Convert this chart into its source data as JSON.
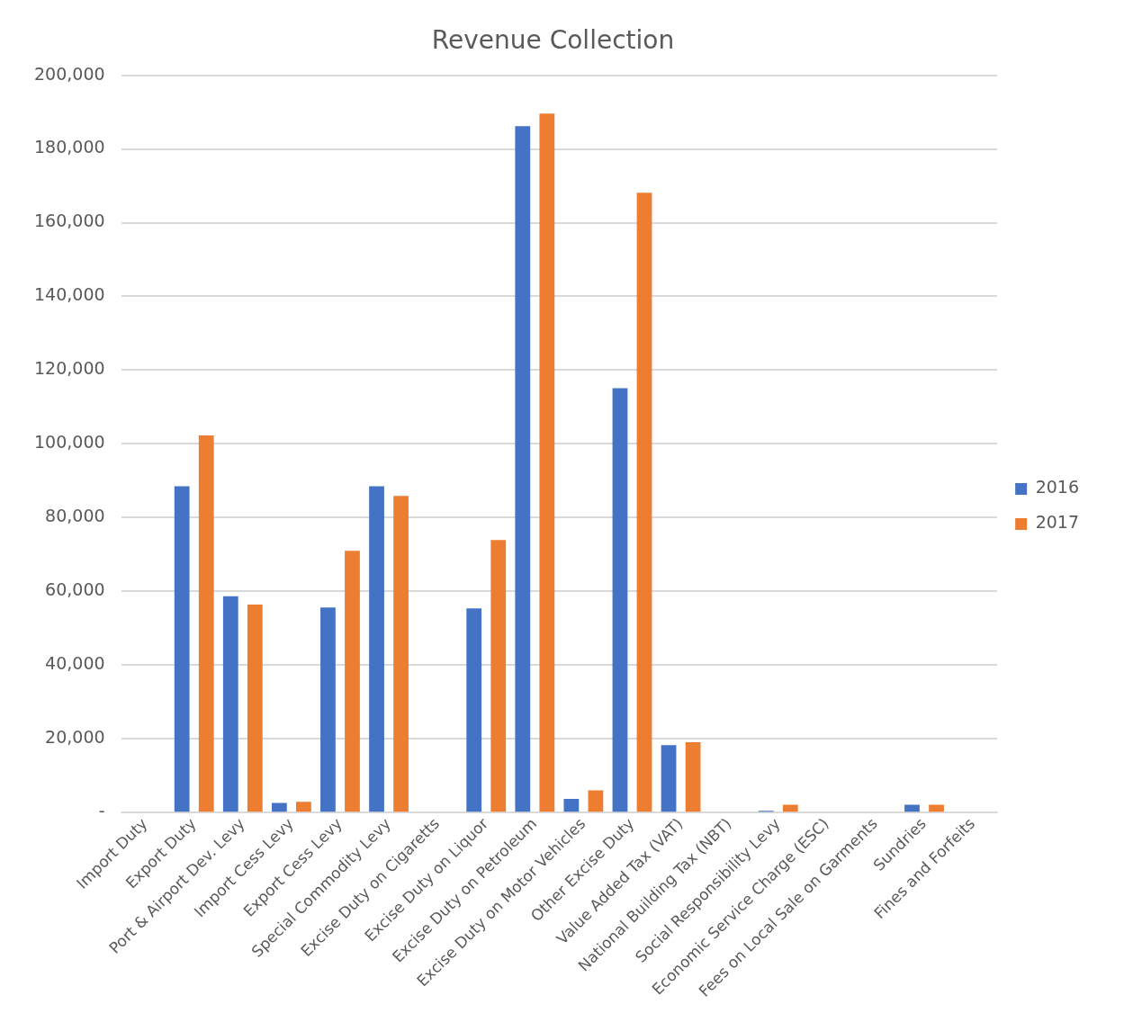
{
  "chart_data": {
    "type": "bar",
    "title": "Revenue Collection",
    "categories": [
      "Import Duty",
      "Export Duty",
      "Port & Airport Dev. Levy",
      "Import Cess Levy",
      "Export Cess Levy",
      "Special Commodity Levy",
      "Excise Duty on Cigaretts",
      "Excise Duty on Liquor",
      "Excise Duty on Petroleum",
      "Excise Duty on Motor Vehicles",
      "Other Excise Duty",
      "Value Added Tax (VAT)",
      "National Building Tax (NBT)",
      "Social Responsibility Levy",
      "Economic Service Charge (ESC)",
      "Fees on Local Sale on Garments",
      "Sundries",
      "Fines and Forfeits"
    ],
    "series": [
      {
        "name": "2016",
        "color": "#4472c4",
        "values": [
          0,
          88500,
          58700,
          2600,
          55600,
          88500,
          0,
          55400,
          186200,
          3700,
          115100,
          18300,
          0,
          500,
          0,
          0,
          2100,
          0
        ]
      },
      {
        "name": "2017",
        "color": "#ed7d31",
        "values": [
          0,
          102300,
          56400,
          2900,
          71000,
          85900,
          0,
          73900,
          189600,
          6000,
          168100,
          19100,
          0,
          2100,
          0,
          0,
          2100,
          0
        ]
      }
    ],
    "ylim": [
      0,
      200000
    ],
    "yticks": [
      {
        "value": 0,
        "label": "-"
      },
      {
        "value": 20000,
        "label": "20,000"
      },
      {
        "value": 40000,
        "label": "40,000"
      },
      {
        "value": 60000,
        "label": "60,000"
      },
      {
        "value": 80000,
        "label": "80,000"
      },
      {
        "value": 100000,
        "label": "100,000"
      },
      {
        "value": 120000,
        "label": "120,000"
      },
      {
        "value": 140000,
        "label": "140,000"
      },
      {
        "value": 160000,
        "label": "160,000"
      },
      {
        "value": 180000,
        "label": "180,000"
      },
      {
        "value": 200000,
        "label": "200,000"
      }
    ],
    "grid": "y",
    "legend": "right"
  }
}
